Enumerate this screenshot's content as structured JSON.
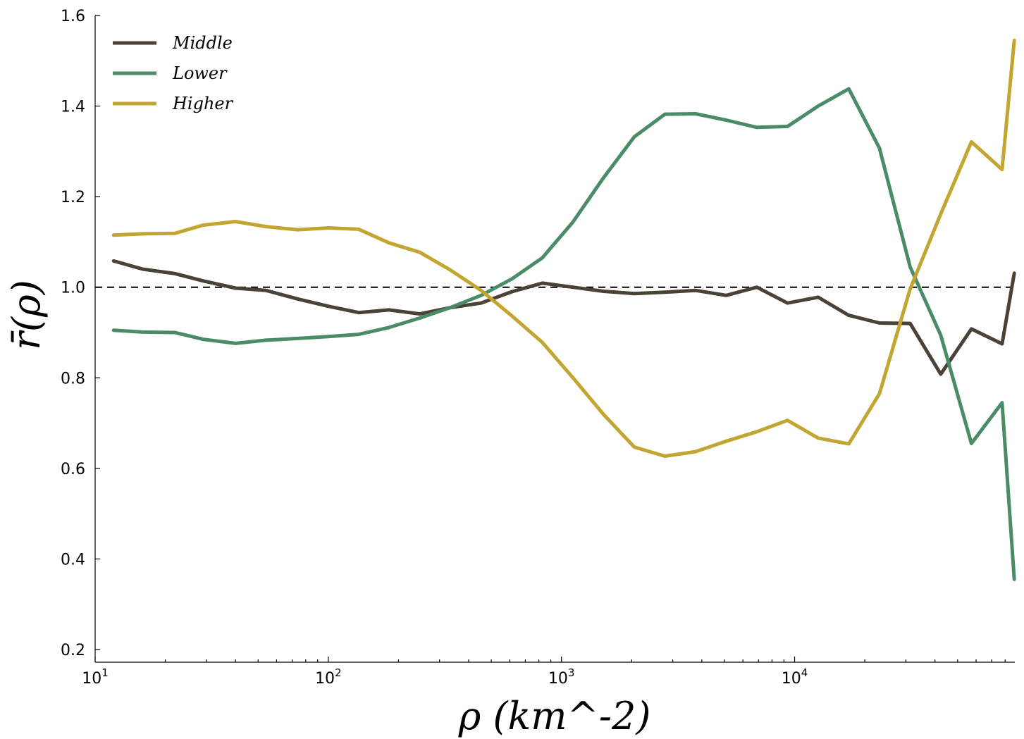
{
  "chart_data": {
    "type": "line",
    "title": "",
    "xlabel": "ρ (km^-2)",
    "ylabel": "r̄(ρ)",
    "xscale": "log",
    "xlim": [
      10,
      88000
    ],
    "ylim": [
      0.2,
      1.6
    ],
    "yticks": [
      "0.2",
      "0.4",
      "0.6",
      "0.8",
      "1.0",
      "1.2",
      "1.4",
      "1.6"
    ],
    "xticks": [
      {
        "base": "10",
        "exp": "1"
      },
      {
        "base": "10",
        "exp": "2"
      },
      {
        "base": "10",
        "exp": "3"
      },
      {
        "base": "10",
        "exp": "4"
      }
    ],
    "reference_line": {
      "y": 1.0,
      "style": "dashed",
      "color": "#000000"
    },
    "grid": false,
    "legend": {
      "placement": "top-left"
    },
    "x": [
      12,
      16,
      22,
      29,
      40,
      54,
      74,
      100,
      135,
      182,
      247,
      334,
      452,
      612,
      828,
      1120,
      1516,
      2052,
      2777,
      3759,
      5088,
      6887,
      9322,
      12616,
      17077,
      23114,
      31288,
      42350,
      57325,
      77595,
      87500
    ],
    "series": [
      {
        "name": "Middle",
        "color": "#4a4137",
        "values": [
          1.058,
          1.04,
          1.03,
          1.014,
          0.998,
          0.993,
          0.974,
          0.958,
          0.944,
          0.95,
          0.941,
          0.955,
          0.965,
          0.99,
          1.009,
          1.0,
          0.991,
          0.986,
          0.989,
          0.993,
          0.982,
          1.0,
          0.965,
          0.978,
          0.938,
          0.921,
          0.92,
          0.808,
          0.908,
          0.875,
          1.031
        ]
      },
      {
        "name": "Lower",
        "color": "#4b8c68",
        "values": [
          0.905,
          0.901,
          0.9,
          0.885,
          0.876,
          0.883,
          0.887,
          0.891,
          0.896,
          0.911,
          0.932,
          0.955,
          0.982,
          1.018,
          1.065,
          1.144,
          1.242,
          1.332,
          1.382,
          1.383,
          1.369,
          1.353,
          1.355,
          1.4,
          1.438,
          1.307,
          1.045,
          0.894,
          0.655,
          0.745,
          0.355
        ]
      },
      {
        "name": "Higher",
        "color": "#c3a532",
        "values": [
          1.115,
          1.118,
          1.119,
          1.137,
          1.145,
          1.134,
          1.127,
          1.131,
          1.128,
          1.098,
          1.077,
          1.038,
          0.993,
          0.937,
          0.878,
          0.8,
          0.719,
          0.647,
          0.627,
          0.637,
          0.66,
          0.681,
          0.706,
          0.667,
          0.654,
          0.765,
          0.996,
          1.162,
          1.321,
          1.26,
          1.545
        ]
      }
    ]
  }
}
